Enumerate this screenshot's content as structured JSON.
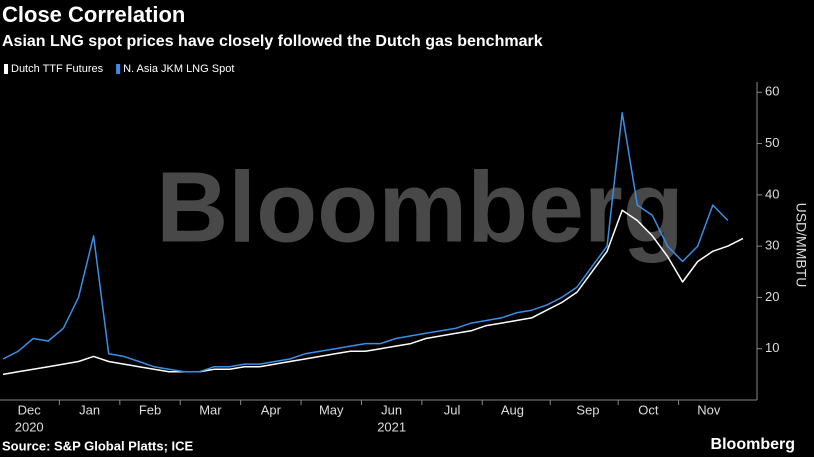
{
  "chart_data": {
    "type": "line",
    "title": "Close Correlation",
    "subtitle": "Asian LNG spot prices have closely followed the Dutch gas benchmark",
    "source": "Source: S&P Global Platts; ICE",
    "watermark": "Bloomberg",
    "logo": "Bloomberg",
    "y_label": "USD/MMBTU",
    "year_labels": [
      "2020",
      "2021"
    ],
    "categories": [
      null,
      null,
      "Dec",
      null,
      null,
      null,
      "Jan",
      null,
      null,
      null,
      "Feb",
      null,
      null,
      null,
      "Mar",
      null,
      null,
      null,
      "Apr",
      null,
      null,
      null,
      "May",
      null,
      null,
      null,
      "Jun",
      null,
      null,
      null,
      "Jul",
      null,
      null,
      null,
      "Aug",
      null,
      null,
      null,
      null,
      "Sep",
      null,
      null,
      null,
      "Oct",
      null,
      null,
      null,
      "Nov",
      null,
      null
    ],
    "series": [
      {
        "name": "Dutch TTF Futures",
        "color": "#ffffff",
        "values": [
          5,
          5.5,
          6,
          6.5,
          7,
          7.5,
          8.5,
          7.5,
          7,
          6.5,
          6,
          5.5,
          5.5,
          5.5,
          6,
          6,
          6.5,
          6.5,
          7,
          7.5,
          8,
          8.5,
          9,
          9.5,
          9.5,
          10,
          10.5,
          11,
          12,
          12.5,
          13,
          13.5,
          14.5,
          15,
          15.5,
          16,
          17.5,
          19,
          21,
          25,
          29,
          37,
          35,
          32,
          28,
          23,
          27,
          29,
          30,
          31.5
        ]
      },
      {
        "name": "N. Asia JKM LNG Spot",
        "color": "#3b8ee6",
        "values": [
          8,
          9.5,
          12,
          11.5,
          14,
          20,
          32,
          9,
          8.5,
          7.5,
          6.5,
          6,
          5.5,
          5.5,
          6.5,
          6.5,
          7,
          7,
          7.5,
          8,
          9,
          9.5,
          10,
          10.5,
          11,
          11,
          12,
          12.5,
          13,
          13.5,
          14,
          15,
          15.5,
          16,
          17,
          17.5,
          18.5,
          20,
          22,
          26,
          30,
          56,
          38,
          36,
          30,
          27,
          30,
          38,
          35,
          null
        ]
      }
    ],
    "ylim": [
      0,
      62
    ],
    "yticks": [
      10,
      20,
      30,
      40,
      50,
      60
    ],
    "grid": false
  }
}
